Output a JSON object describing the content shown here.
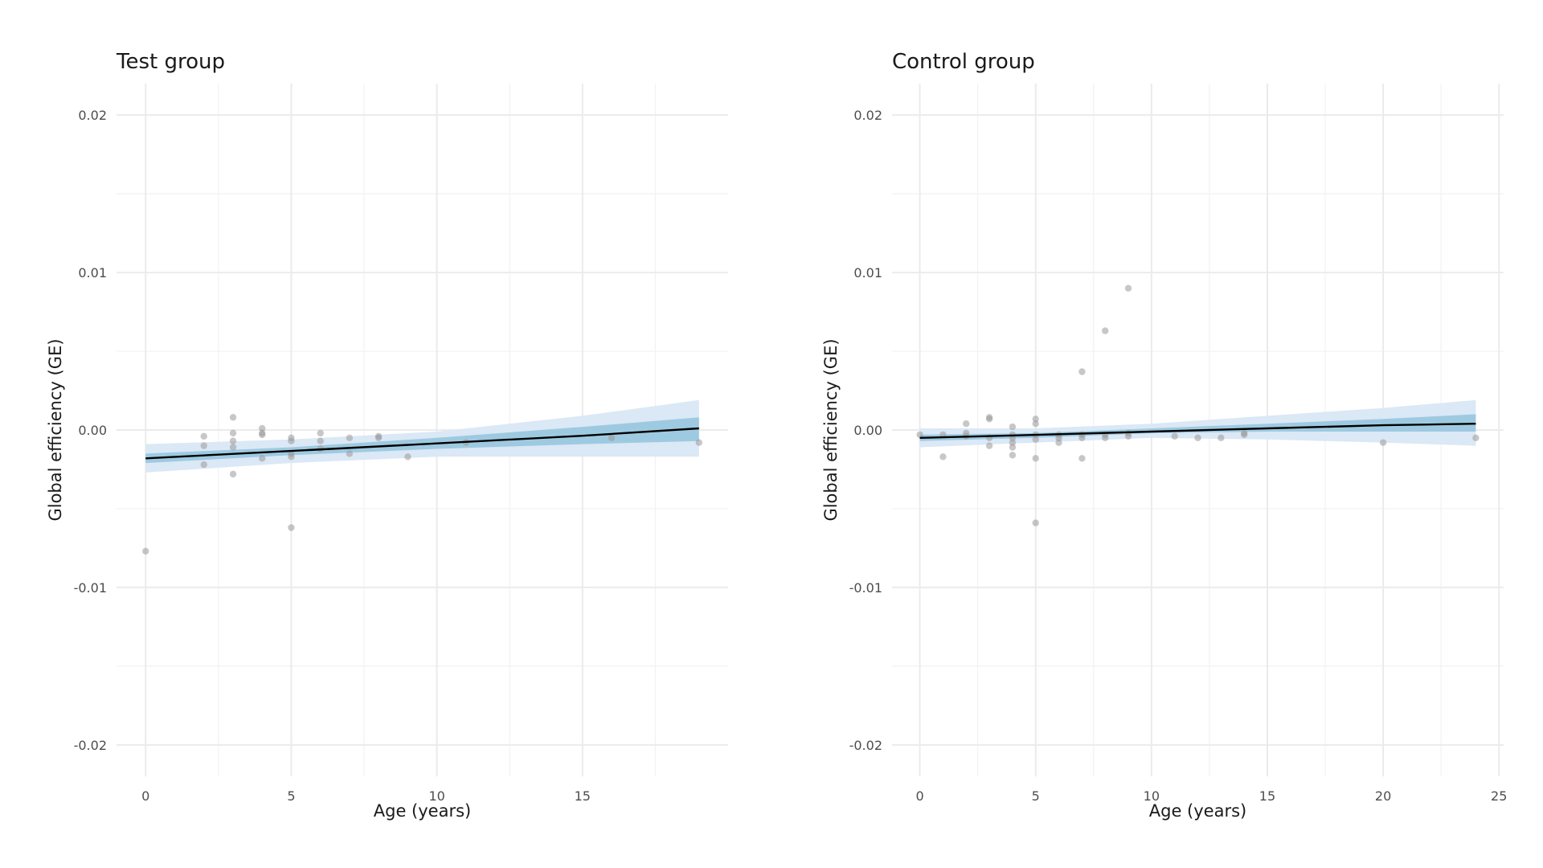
{
  "chart_data": [
    {
      "type": "scatter",
      "title": "Test group",
      "xlabel": "Age (years)",
      "ylabel": "Global efficiency (GE)",
      "xlim": [
        -1,
        20
      ],
      "ylim": [
        -0.022,
        0.022
      ],
      "xticks": [
        0,
        5,
        10,
        15
      ],
      "yticks": [
        -0.02,
        -0.01,
        0.0,
        0.01,
        0.02
      ],
      "ytick_labels": [
        "-0.02",
        "-0.01",
        "0.00",
        "0.01",
        "0.02"
      ],
      "grid": true,
      "colors": {
        "inner_band": "#9ecae1",
        "outer_band": "#dbe8f5",
        "line": "#000000",
        "points": "#999999"
      },
      "points": [
        {
          "x": 0,
          "y": -0.0077
        },
        {
          "x": 2,
          "y": -0.0004
        },
        {
          "x": 2,
          "y": -0.001
        },
        {
          "x": 2,
          "y": -0.0022
        },
        {
          "x": 3,
          "y": 0.0008
        },
        {
          "x": 3,
          "y": -0.0002
        },
        {
          "x": 3,
          "y": -0.0007
        },
        {
          "x": 3,
          "y": -0.0011
        },
        {
          "x": 3,
          "y": -0.0028
        },
        {
          "x": 4,
          "y": 0.0001
        },
        {
          "x": 4,
          "y": -0.0002
        },
        {
          "x": 4,
          "y": -0.0003
        },
        {
          "x": 4,
          "y": -0.0018
        },
        {
          "x": 5,
          "y": -0.0005
        },
        {
          "x": 5,
          "y": -0.0007
        },
        {
          "x": 5,
          "y": -0.0015
        },
        {
          "x": 5,
          "y": -0.0017
        },
        {
          "x": 5,
          "y": -0.0062
        },
        {
          "x": 6,
          "y": -0.0002
        },
        {
          "x": 6,
          "y": -0.0007
        },
        {
          "x": 6,
          "y": -0.0012
        },
        {
          "x": 7,
          "y": -0.0005
        },
        {
          "x": 7,
          "y": -0.0015
        },
        {
          "x": 8,
          "y": -0.0004
        },
        {
          "x": 8,
          "y": -0.0005
        },
        {
          "x": 9,
          "y": -0.0017
        },
        {
          "x": 11,
          "y": -0.0008
        },
        {
          "x": 16,
          "y": -0.0005
        },
        {
          "x": 19,
          "y": -0.0008
        }
      ],
      "fit": {
        "x": [
          0,
          5,
          10,
          15,
          19
        ],
        "y": [
          -0.0018,
          -0.00133,
          -0.00085,
          -0.00037,
          0.0001
        ],
        "inner_lower": [
          -0.0021,
          -0.0016,
          -0.0012,
          -0.0009,
          -0.0007
        ],
        "inner_upper": [
          -0.0015,
          -0.0011,
          -0.0005,
          0.0002,
          0.0008
        ],
        "outer_lower": [
          -0.0027,
          -0.0021,
          -0.0017,
          -0.0017,
          -0.0017
        ],
        "outer_upper": [
          -0.0009,
          -0.0006,
          -0.0001,
          0.0009,
          0.0019
        ]
      }
    },
    {
      "type": "scatter",
      "title": "Control group",
      "xlabel": "Age (years)",
      "ylabel": "Global efficiency (GE)",
      "xlim": [
        -1.2,
        25.2
      ],
      "ylim": [
        -0.022,
        0.022
      ],
      "xticks": [
        0,
        5,
        10,
        15,
        20,
        25
      ],
      "yticks": [
        -0.02,
        -0.01,
        0.0,
        0.01,
        0.02
      ],
      "ytick_labels": [
        "-0.02",
        "-0.01",
        "0.00",
        "0.01",
        "0.02"
      ],
      "grid": true,
      "colors": {
        "inner_band": "#9ecae1",
        "outer_band": "#dbe8f5",
        "line": "#000000",
        "points": "#999999"
      },
      "points": [
        {
          "x": 0,
          "y": -0.0003
        },
        {
          "x": 1,
          "y": -0.0003
        },
        {
          "x": 1,
          "y": -0.0017
        },
        {
          "x": 2,
          "y": 0.0004
        },
        {
          "x": 2,
          "y": -0.0002
        },
        {
          "x": 2,
          "y": -0.0004
        },
        {
          "x": 3,
          "y": 0.0008
        },
        {
          "x": 3,
          "y": 0.0007
        },
        {
          "x": 3,
          "y": -0.0005
        },
        {
          "x": 3,
          "y": -0.001
        },
        {
          "x": 4,
          "y": 0.0002
        },
        {
          "x": 4,
          "y": -0.0003
        },
        {
          "x": 4,
          "y": -0.0005
        },
        {
          "x": 4,
          "y": -0.0008
        },
        {
          "x": 4,
          "y": -0.0011
        },
        {
          "x": 4,
          "y": -0.0016
        },
        {
          "x": 5,
          "y": 0.0007
        },
        {
          "x": 5,
          "y": 0.0004
        },
        {
          "x": 5,
          "y": -0.0003
        },
        {
          "x": 5,
          "y": -0.0006
        },
        {
          "x": 5,
          "y": -0.0018
        },
        {
          "x": 5,
          "y": -0.0059
        },
        {
          "x": 6,
          "y": -0.0003
        },
        {
          "x": 6,
          "y": -0.0005
        },
        {
          "x": 6,
          "y": -0.0008
        },
        {
          "x": 7,
          "y": 0.0037
        },
        {
          "x": 7,
          "y": -0.0003
        },
        {
          "x": 7,
          "y": -0.0005
        },
        {
          "x": 7,
          "y": -0.0018
        },
        {
          "x": 8,
          "y": 0.0063
        },
        {
          "x": 8,
          "y": -0.0003
        },
        {
          "x": 8,
          "y": -0.0005
        },
        {
          "x": 9,
          "y": 0.009
        },
        {
          "x": 9,
          "y": -0.0002
        },
        {
          "x": 9,
          "y": -0.0004
        },
        {
          "x": 11,
          "y": -0.0004
        },
        {
          "x": 12,
          "y": -0.0005
        },
        {
          "x": 13,
          "y": -0.0005
        },
        {
          "x": 14,
          "y": -0.0002
        },
        {
          "x": 14,
          "y": -0.0003
        },
        {
          "x": 20,
          "y": -0.0008
        },
        {
          "x": 24,
          "y": -0.0005
        }
      ],
      "fit": {
        "x": [
          0,
          5,
          10,
          15,
          20,
          24
        ],
        "y": [
          -0.0005,
          -0.00031,
          -0.0001,
          0.0001,
          0.0003,
          0.0004
        ],
        "inner_lower": [
          -0.0007,
          -0.0005,
          -0.0002,
          -0.0001,
          -0.0001,
          -0.0001
        ],
        "inner_upper": [
          -0.0003,
          -0.0002,
          0.0001,
          0.0004,
          0.0007,
          0.001
        ],
        "outer_lower": [
          -0.0011,
          -0.0008,
          -0.0005,
          -0.0006,
          -0.0008,
          -0.001
        ],
        "outer_upper": [
          0.0001,
          0.0001,
          0.0004,
          0.0009,
          0.0014,
          0.0019
        ]
      }
    }
  ]
}
